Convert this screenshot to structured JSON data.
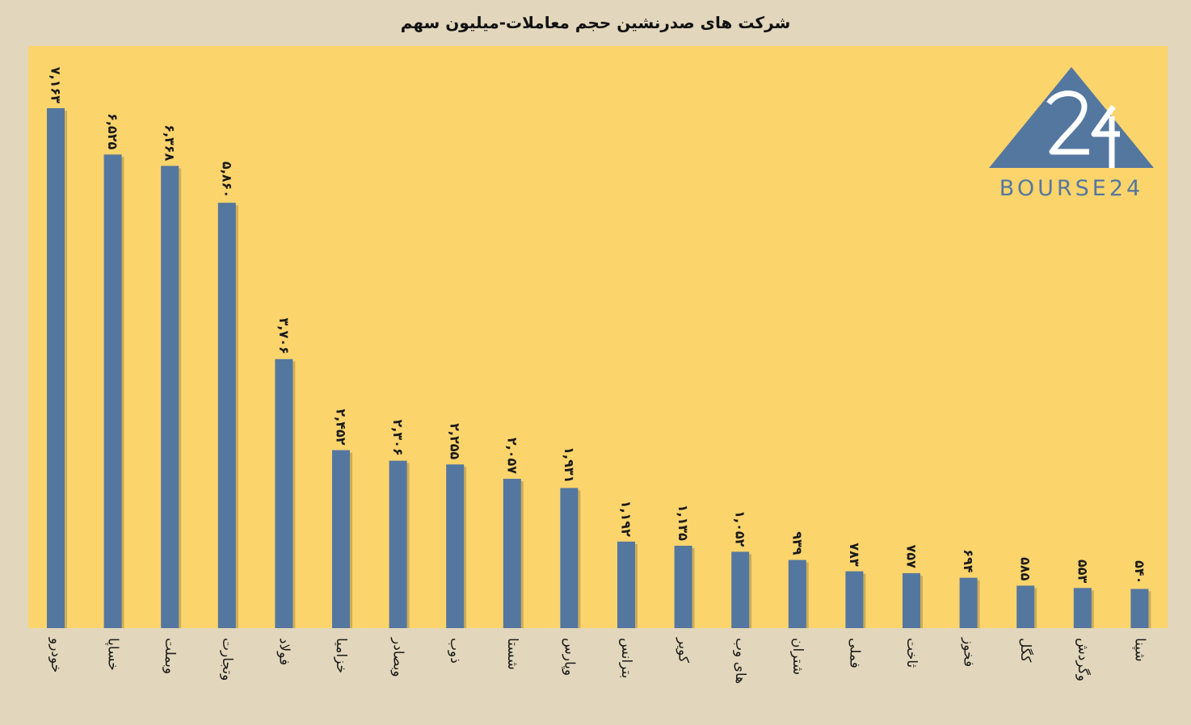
{
  "title": "شرکت های صدرنشین حجم معاملات-میلیون سهم",
  "logo": {
    "text": "BOURSE24",
    "numeral": "24"
  },
  "colors": {
    "background": "#e2d7bc",
    "plot": "#fcd46c",
    "bar": "#54779f",
    "logo": "#54779f"
  },
  "chart_data": {
    "type": "bar",
    "title": "شرکت های صدرنشین حجم معاملات-میلیون سهم",
    "categories": [
      "خودرو",
      "خساپا",
      "وبملت",
      "وتجارت",
      "فولاد",
      "خزامیا",
      "وبصادر",
      "ذوب",
      "شستا",
      "وپارس",
      "بترانس",
      "کویر",
      "های وب",
      "شتران",
      "فملی",
      "ثاخت",
      "فخوز",
      "کگل",
      "وگردش",
      "شپنا"
    ],
    "values": [
      7163,
      6525,
      6368,
      5860,
      3706,
      2452,
      2306,
      2255,
      2057,
      1931,
      1192,
      1135,
      1052,
      939,
      783,
      757,
      694,
      585,
      553,
      540
    ],
    "labels": [
      "۷,۱۶۳",
      "۶,۵۲۵",
      "۶,۳۶۸",
      "۵,۸۶۰",
      "۳,۷۰۶",
      "۲,۴۵۲",
      "۲,۳۰۶",
      "۲,۲۵۵",
      "۲,۰۵۷",
      "۱,۹۳۱",
      "۱,۱۹۲",
      "۱,۱۳۵",
      "۱,۰۵۲",
      "۹۳۹",
      "۷۸۳",
      "۷۵۷",
      "۶۹۴",
      "۵۸۵",
      "۵۵۳",
      "۵۴۰"
    ],
    "ylim": [
      0,
      8000
    ],
    "grid": false,
    "legend": "none"
  }
}
